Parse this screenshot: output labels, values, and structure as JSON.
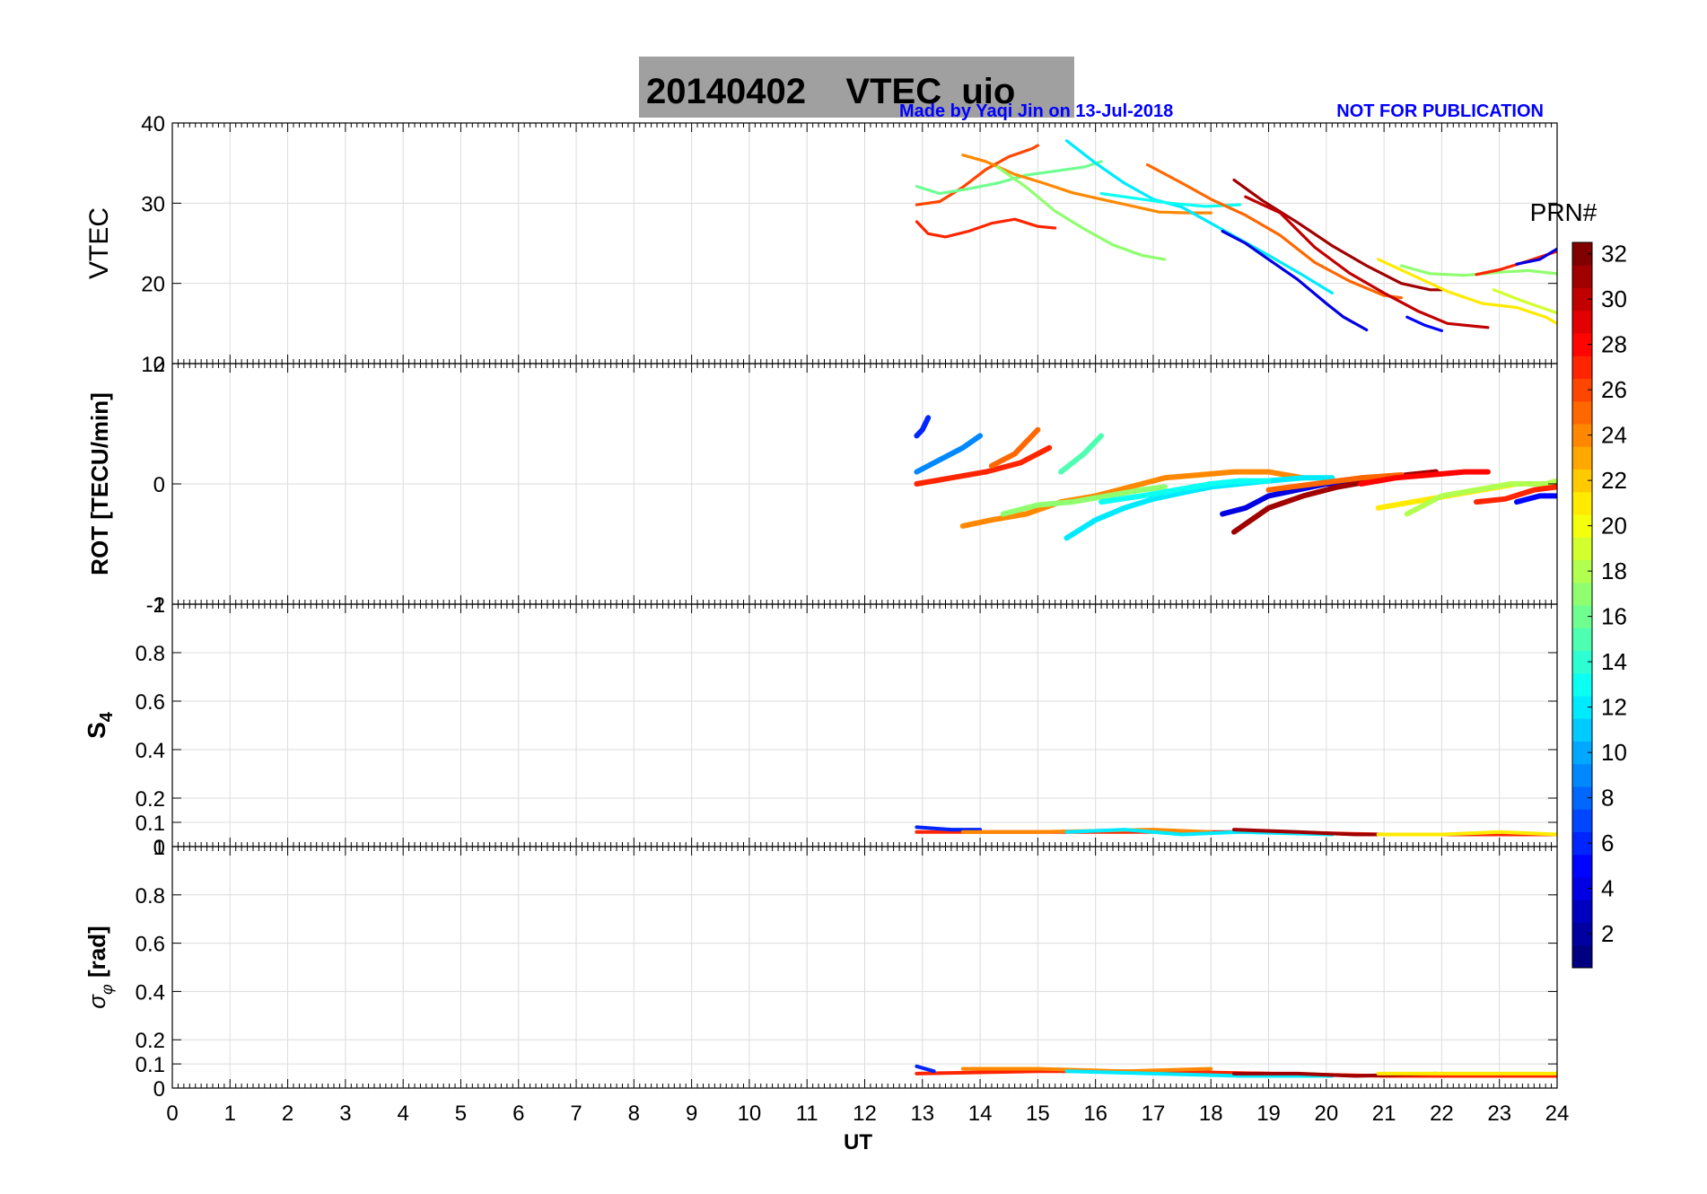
{
  "header": {
    "title": "20140402    VTEC  uio",
    "credit": "Made by Yaqi Jin on 13-Jul-2018",
    "notice": "NOT FOR PUBLICATION",
    "colors": {
      "title_box": "#a0a0a0",
      "credit": "#0000ff"
    }
  },
  "x_axis": {
    "label": "UT",
    "ticks": [
      "0",
      "1",
      "2",
      "3",
      "4",
      "5",
      "6",
      "7",
      "8",
      "9",
      "10",
      "11",
      "12",
      "13",
      "14",
      "15",
      "16",
      "17",
      "18",
      "19",
      "20",
      "21",
      "22",
      "23",
      "24"
    ],
    "range": [
      0,
      24
    ]
  },
  "colorbar": {
    "title": "PRN#",
    "ticks": [
      "2",
      "4",
      "6",
      "8",
      "10",
      "12",
      "14",
      "16",
      "18",
      "20",
      "22",
      "24",
      "26",
      "28",
      "30",
      "32"
    ],
    "range": [
      1,
      32
    ],
    "colormap": "jet"
  },
  "chart_data": [
    {
      "type": "line",
      "ylabel": "VTEC",
      "ylim": [
        10,
        40
      ],
      "yticks": [
        "10",
        "20",
        "30",
        "40"
      ],
      "grid": true,
      "series": [
        {
          "prn": 27,
          "x": [
            12.9,
            13.1,
            13.4,
            13.8,
            14.2,
            14.6,
            15.0,
            15.3
          ],
          "y": [
            27.7,
            26.2,
            25.8,
            26.5,
            27.5,
            28.0,
            27.1,
            26.9
          ]
        },
        {
          "prn": 26,
          "x": [
            12.9,
            13.3,
            13.7,
            14.1,
            14.5,
            14.9,
            15.0
          ],
          "y": [
            29.8,
            30.2,
            32.0,
            34.2,
            35.8,
            36.8,
            37.2
          ]
        },
        {
          "prn": 16,
          "x": [
            12.9,
            13.3,
            13.8,
            14.3,
            14.8,
            15.3,
            15.8,
            16.1
          ],
          "y": [
            32.1,
            31.2,
            31.8,
            32.5,
            33.5,
            34.0,
            34.5,
            35.2
          ]
        },
        {
          "prn": 24,
          "x": [
            13.7,
            14.1,
            14.6,
            15.1,
            15.6,
            16.1,
            16.6,
            17.1,
            17.6,
            18.0
          ],
          "y": [
            36.0,
            35.2,
            33.6,
            32.5,
            31.3,
            30.5,
            29.7,
            28.9,
            28.8,
            28.8
          ]
        },
        {
          "prn": 17,
          "x": [
            14.3,
            14.8,
            15.3,
            15.8,
            16.3,
            16.8,
            17.2
          ],
          "y": [
            34.5,
            32.0,
            29.0,
            26.8,
            24.8,
            23.5,
            23.0
          ]
        },
        {
          "prn": 12,
          "x": [
            15.5,
            16.0,
            16.5,
            17.0,
            17.5,
            18.0,
            18.5,
            19.0,
            19.6,
            20.1
          ],
          "y": [
            37.8,
            35.0,
            32.5,
            30.5,
            29.5,
            27.5,
            25.5,
            23.5,
            21.0,
            18.8
          ]
        },
        {
          "prn": 13,
          "x": [
            16.1,
            16.7,
            17.3,
            17.9,
            18.5
          ],
          "y": [
            31.2,
            30.6,
            30.0,
            29.6,
            29.8
          ]
        },
        {
          "prn": 4,
          "x": [
            18.2,
            18.6,
            19.0,
            19.5,
            20.0,
            20.3,
            20.7
          ],
          "y": [
            26.5,
            25.0,
            23.0,
            20.5,
            17.5,
            15.8,
            14.2
          ]
        },
        {
          "prn": 25,
          "x": [
            16.9,
            17.5,
            18.0,
            18.6,
            19.2,
            19.8,
            20.4,
            21.0,
            21.3
          ],
          "y": [
            34.8,
            32.5,
            30.5,
            28.5,
            26.0,
            22.6,
            20.3,
            18.5,
            18.2
          ]
        },
        {
          "prn": 31,
          "x": [
            18.4,
            18.9,
            19.5,
            20.1,
            20.7,
            21.3,
            21.8,
            22.0
          ],
          "y": [
            32.9,
            30.3,
            27.6,
            24.7,
            22.2,
            20.0,
            19.2,
            19.2
          ]
        },
        {
          "prn": 30,
          "x": [
            18.6,
            19.2,
            19.8,
            20.4,
            21.0,
            21.6,
            22.1,
            22.8
          ],
          "y": [
            30.8,
            28.8,
            24.5,
            21.3,
            18.8,
            16.5,
            15.0,
            14.5
          ]
        },
        {
          "prn": 5,
          "x": [
            21.4,
            21.7,
            22.0
          ],
          "y": [
            15.8,
            14.8,
            14.1
          ]
        },
        {
          "prn": 21,
          "x": [
            20.9,
            21.5,
            22.1,
            22.7,
            23.3,
            23.8,
            24.0
          ],
          "y": [
            23.0,
            21.0,
            19.0,
            17.5,
            17.0,
            15.8,
            15.0
          ]
        },
        {
          "prn": 17,
          "x": [
            21.3,
            21.8,
            22.4,
            23.0,
            23.5,
            24.0
          ],
          "y": [
            22.2,
            21.2,
            21.0,
            21.4,
            21.6,
            21.2
          ]
        },
        {
          "prn": 19,
          "x": [
            22.9,
            23.4,
            24.0
          ],
          "y": [
            19.2,
            17.8,
            16.3
          ]
        },
        {
          "prn": 27,
          "x": [
            22.6,
            23.0,
            23.5,
            24.0
          ],
          "y": [
            21.1,
            21.7,
            22.8,
            24.0
          ]
        },
        {
          "prn": 4,
          "x": [
            23.3,
            23.7,
            24.0
          ],
          "y": [
            22.4,
            23.0,
            24.3
          ]
        }
      ]
    },
    {
      "type": "line",
      "ylabel": "ROT [TECU/min]",
      "ylim": [
        -2,
        2
      ],
      "yticks": [
        "-2",
        "0",
        "2"
      ],
      "grid": true,
      "series": [
        {
          "prn": 6,
          "x": [
            12.9,
            13.0,
            13.1
          ],
          "y": [
            0.8,
            0.9,
            1.1
          ]
        },
        {
          "prn": 9,
          "x": [
            12.9,
            13.3,
            13.7,
            14.0
          ],
          "y": [
            0.2,
            0.4,
            0.6,
            0.8
          ]
        },
        {
          "prn": 27,
          "x": [
            12.9,
            13.5,
            14.1,
            14.7,
            15.2
          ],
          "y": [
            0.0,
            0.1,
            0.2,
            0.35,
            0.6
          ]
        },
        {
          "prn": 25,
          "x": [
            14.2,
            14.6,
            15.0
          ],
          "y": [
            0.3,
            0.5,
            0.9
          ]
        },
        {
          "prn": 15,
          "x": [
            15.4,
            15.8,
            16.1
          ],
          "y": [
            0.2,
            0.5,
            0.8
          ]
        },
        {
          "prn": 24,
          "x": [
            13.7,
            14.2,
            14.8,
            15.4,
            16.0,
            16.6,
            17.2,
            17.8,
            18.4,
            19.0,
            19.6
          ],
          "y": [
            -0.7,
            -0.6,
            -0.5,
            -0.3,
            -0.2,
            -0.05,
            0.1,
            0.15,
            0.2,
            0.2,
            0.1
          ]
        },
        {
          "prn": 17,
          "x": [
            14.4,
            15.0,
            15.6,
            16.2,
            16.8,
            17.2
          ],
          "y": [
            -0.5,
            -0.35,
            -0.3,
            -0.2,
            -0.1,
            -0.05
          ]
        },
        {
          "prn": 12,
          "x": [
            15.5,
            16.0,
            16.5,
            17.0,
            17.5,
            18.0,
            18.5,
            19.0,
            19.6,
            20.1
          ],
          "y": [
            -0.9,
            -0.6,
            -0.4,
            -0.25,
            -0.15,
            -0.05,
            0.0,
            0.05,
            0.1,
            0.1
          ]
        },
        {
          "prn": 13,
          "x": [
            16.1,
            16.8,
            17.4,
            18.0,
            18.5,
            19.0
          ],
          "y": [
            -0.3,
            -0.2,
            -0.1,
            0.0,
            0.05,
            0.05
          ]
        },
        {
          "prn": 4,
          "x": [
            18.2,
            18.6,
            19.0,
            19.5,
            20.0,
            20.7
          ],
          "y": [
            -0.5,
            -0.4,
            -0.2,
            -0.1,
            0.0,
            0.05
          ]
        },
        {
          "prn": 31,
          "x": [
            18.4,
            19.0,
            19.6,
            20.2,
            20.8,
            21.4,
            21.9
          ],
          "y": [
            -0.8,
            -0.4,
            -0.2,
            -0.05,
            0.05,
            0.15,
            0.2
          ]
        },
        {
          "prn": 25,
          "x": [
            19.0,
            19.8,
            20.6,
            21.3
          ],
          "y": [
            -0.1,
            0.0,
            0.1,
            0.15
          ]
        },
        {
          "prn": 28,
          "x": [
            20.6,
            21.2,
            21.8,
            22.4,
            22.8
          ],
          "y": [
            0.0,
            0.1,
            0.15,
            0.2,
            0.2
          ]
        },
        {
          "prn": 21,
          "x": [
            20.9,
            21.5,
            22.1,
            22.7,
            23.3,
            24.0
          ],
          "y": [
            -0.4,
            -0.3,
            -0.2,
            -0.1,
            0.0,
            0.0
          ]
        },
        {
          "prn": 18,
          "x": [
            21.4,
            22.0,
            22.6,
            23.2,
            23.8,
            24.0
          ],
          "y": [
            -0.5,
            -0.2,
            -0.1,
            0.0,
            0.0,
            0.05
          ]
        },
        {
          "prn": 27,
          "x": [
            22.6,
            23.1,
            23.6,
            24.0
          ],
          "y": [
            -0.3,
            -0.25,
            -0.1,
            -0.05
          ]
        },
        {
          "prn": 5,
          "x": [
            23.3,
            23.7,
            24.0
          ],
          "y": [
            -0.3,
            -0.2,
            -0.2
          ]
        }
      ]
    },
    {
      "type": "line",
      "ylabel": "S4",
      "ylim": [
        0,
        1
      ],
      "yticks": [
        "0",
        "0.1",
        "0.2",
        "0.4",
        "0.6",
        "0.8",
        "1"
      ],
      "grid": true,
      "series": [
        {
          "prn": 27,
          "x": [
            12.9,
            15.0,
            17.0,
            19.0,
            21.0,
            24.0
          ],
          "y": [
            0.06,
            0.06,
            0.06,
            0.06,
            0.05,
            0.05
          ]
        },
        {
          "prn": 6,
          "x": [
            12.9,
            13.5,
            14.0
          ],
          "y": [
            0.08,
            0.07,
            0.07
          ]
        },
        {
          "prn": 24,
          "x": [
            13.7,
            15.0,
            17.0,
            18.0
          ],
          "y": [
            0.06,
            0.06,
            0.07,
            0.06
          ]
        },
        {
          "prn": 12,
          "x": [
            15.5,
            16.5,
            17.5,
            18.5,
            20.1
          ],
          "y": [
            0.06,
            0.07,
            0.05,
            0.06,
            0.05
          ]
        },
        {
          "prn": 31,
          "x": [
            18.4,
            19.5,
            20.5,
            21.9
          ],
          "y": [
            0.07,
            0.06,
            0.05,
            0.05
          ]
        },
        {
          "prn": 21,
          "x": [
            20.9,
            22.0,
            23.0,
            24.0
          ],
          "y": [
            0.05,
            0.05,
            0.06,
            0.05
          ]
        }
      ]
    },
    {
      "type": "line",
      "ylabel": "σφ [rad]",
      "ylim": [
        0,
        1
      ],
      "yticks": [
        "0",
        "0.1",
        "0.2",
        "0.4",
        "0.6",
        "0.8",
        "1"
      ],
      "grid": true,
      "series": [
        {
          "prn": 27,
          "x": [
            12.9,
            15.0,
            17.0,
            19.0,
            21.0,
            24.0
          ],
          "y": [
            0.06,
            0.07,
            0.07,
            0.06,
            0.05,
            0.05
          ]
        },
        {
          "prn": 6,
          "x": [
            12.9,
            13.2
          ],
          "y": [
            0.09,
            0.07
          ]
        },
        {
          "prn": 24,
          "x": [
            13.7,
            15.0,
            16.5,
            18.0
          ],
          "y": [
            0.08,
            0.08,
            0.07,
            0.08
          ]
        },
        {
          "prn": 12,
          "x": [
            15.5,
            17.0,
            18.5,
            20.1
          ],
          "y": [
            0.07,
            0.06,
            0.05,
            0.05
          ]
        },
        {
          "prn": 31,
          "x": [
            18.4,
            19.5,
            20.5,
            21.9
          ],
          "y": [
            0.06,
            0.06,
            0.05,
            0.06
          ]
        },
        {
          "prn": 21,
          "x": [
            20.9,
            22.0,
            23.0,
            24.0
          ],
          "y": [
            0.06,
            0.06,
            0.06,
            0.06
          ]
        }
      ]
    }
  ]
}
